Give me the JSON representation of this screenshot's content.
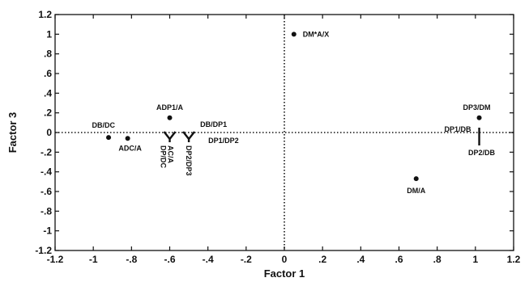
{
  "chart_data": {
    "type": "scatter",
    "title": "",
    "xlabel": "Factor 1",
    "ylabel": "Factor 3",
    "xlim": [
      -1.2,
      1.2
    ],
    "ylim": [
      -1.2,
      1.2
    ],
    "x_ticks": [
      "-1.2",
      "-1",
      "-.8",
      "-.6",
      "-.4",
      "-.2",
      "0",
      ".2",
      ".4",
      ".6",
      ".8",
      "1",
      "1.2"
    ],
    "y_ticks": [
      "1.2",
      "1",
      ".8",
      ".6",
      ".4",
      ".2",
      "0",
      "-.2",
      "-.4",
      "-.6",
      "-.8",
      "-1",
      "-1.2"
    ],
    "reference_lines": {
      "x": 0,
      "y": 0,
      "style": "dotted"
    },
    "grid": false,
    "points": [
      {
        "label": "DM*A/X",
        "x": 0.05,
        "y": 1.0
      },
      {
        "label": "ADP1/A",
        "x": -0.6,
        "y": 0.15
      },
      {
        "label": "DB/DC",
        "x": -0.92,
        "y": -0.05
      },
      {
        "label": "ADC/A",
        "x": -0.82,
        "y": -0.06
      },
      {
        "label": "DP3/DM",
        "x": 1.02,
        "y": 0.15
      },
      {
        "label": "DM/A",
        "x": 0.69,
        "y": -0.47
      }
    ],
    "annotations": [
      {
        "label": "DB/DP1"
      },
      {
        "label": "DP1/DP2"
      },
      {
        "label": "AC/A"
      },
      {
        "label": "DP/DC"
      },
      {
        "label": "DP2/DP3"
      },
      {
        "label": "DP1/DB"
      },
      {
        "label": "DP2/DB"
      }
    ]
  }
}
